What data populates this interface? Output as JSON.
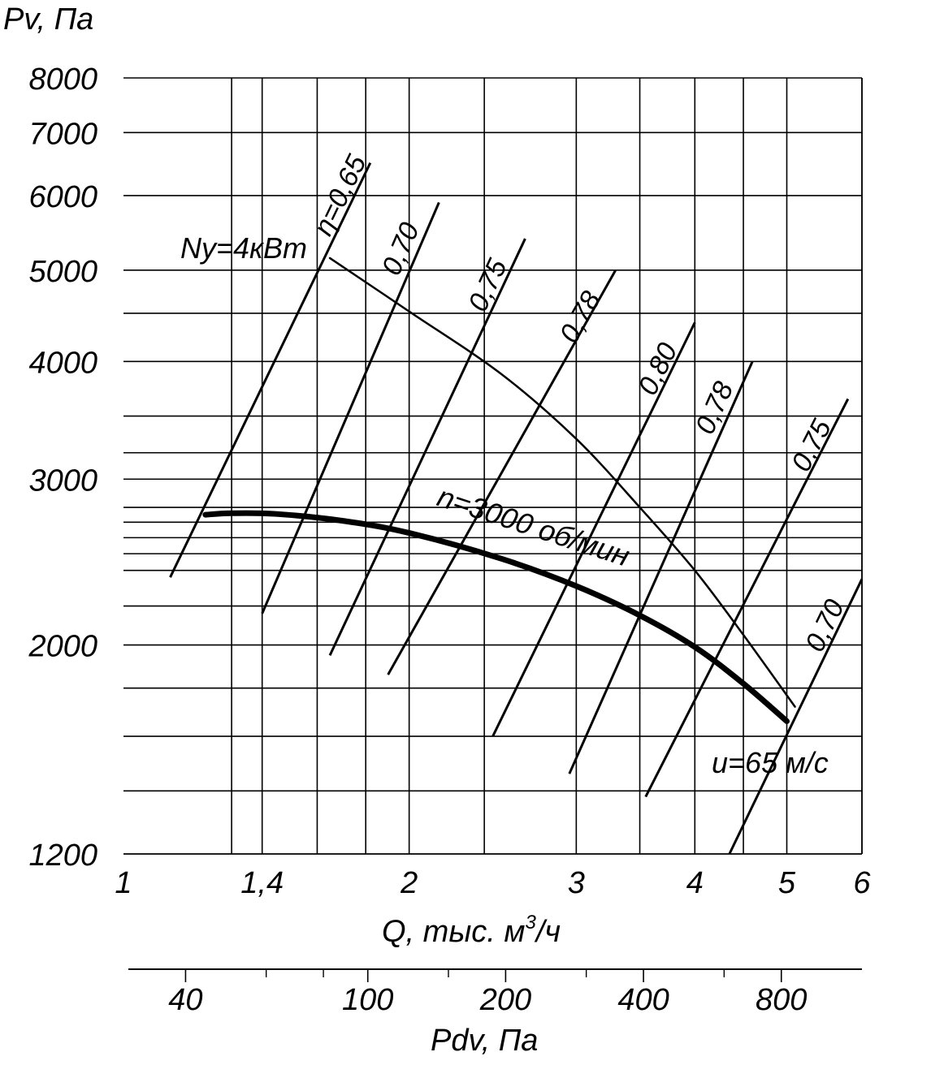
{
  "chart_data": {
    "type": "line",
    "title": "",
    "ylabel": "Pv, Па",
    "xlabel_prefix": "Q,  тыс. м",
    "xlabel_sup": "3",
    "xlabel_suffix": "/ч",
    "x2label": "Pdv, Па",
    "x_scale": "log",
    "y_scale": "log",
    "xlim": [
      1,
      6
    ],
    "ylim": [
      1200,
      8000
    ],
    "x_tick_labels": [
      {
        "value": 1,
        "label": "1"
      },
      {
        "value": 1.4,
        "label": "1,4"
      },
      {
        "value": 2,
        "label": "2"
      },
      {
        "value": 3,
        "label": "3"
      },
      {
        "value": 4,
        "label": "4"
      },
      {
        "value": 5,
        "label": "5"
      },
      {
        "value": 6,
        "label": "6"
      }
    ],
    "x_grid": [
      1.3,
      1.4,
      1.6,
      1.8,
      2,
      2.4,
      3,
      3.5,
      4,
      4.5,
      5,
      6
    ],
    "y_tick_labels": [
      {
        "value": 8000,
        "label": "8000"
      },
      {
        "value": 7000,
        "label": "7000"
      },
      {
        "value": 6000,
        "label": "6000"
      },
      {
        "value": 5000,
        "label": "5000"
      },
      {
        "value": 4000,
        "label": "4000"
      },
      {
        "value": 3000,
        "label": "3000"
      },
      {
        "value": 2000,
        "label": "2000"
      },
      {
        "value": 1200,
        "label": "1200"
      }
    ],
    "y_grid": [
      8000,
      7000,
      6000,
      5000,
      4500,
      4000,
      3500,
      3200,
      3000,
      2800,
      2700,
      2600,
      2500,
      2400,
      2200,
      2000,
      1800,
      1600,
      1400,
      1200
    ],
    "secondary_axis": {
      "label": "Pdv, Па",
      "scale": "log",
      "range": [
        30,
        1200
      ],
      "tick_labels": [
        {
          "value": 40,
          "label": "40"
        },
        {
          "value": 100,
          "label": "100"
        },
        {
          "value": 200,
          "label": "200"
        },
        {
          "value": 400,
          "label": "400"
        },
        {
          "value": 800,
          "label": "800"
        }
      ],
      "minor_ticks": [
        60,
        80,
        150,
        300,
        600
      ]
    },
    "series": [
      {
        "name": "n=3000 об/мин",
        "label": "n=3000 об/мин",
        "x": [
          1.22,
          1.3,
          1.45,
          1.7,
          2.0,
          2.5,
          3.0,
          3.5,
          4.0,
          4.5,
          5.0
        ],
        "values": [
          2750,
          2760,
          2755,
          2710,
          2630,
          2470,
          2310,
          2150,
          1990,
          1820,
          1660
        ],
        "stroke_width": 7
      },
      {
        "name": "Ny=4кВт",
        "label": "Ny=4кВт",
        "x": [
          1.65,
          2.0,
          2.5,
          3.0,
          3.5,
          4.0,
          4.5,
          5.1
        ],
        "values": [
          5150,
          4520,
          3880,
          3310,
          2800,
          2400,
          2050,
          1720
        ],
        "stroke_width": 2.5
      }
    ],
    "efficiency_lines": [
      {
        "label": "η=0,65",
        "from": {
          "x": 1.12,
          "y": 2360
        },
        "to": {
          "x": 1.82,
          "y": 6500
        }
      },
      {
        "label": "0,70",
        "from": {
          "x": 1.4,
          "y": 2160
        },
        "to": {
          "x": 2.15,
          "y": 5900
        }
      },
      {
        "label": "0,75",
        "from": {
          "x": 1.65,
          "y": 1950
        },
        "to": {
          "x": 2.65,
          "y": 5400
        }
      },
      {
        "label": "0,78",
        "from": {
          "x": 1.9,
          "y": 1860
        },
        "to": {
          "x": 3.3,
          "y": 5000
        }
      },
      {
        "label": "0,80",
        "from": {
          "x": 2.45,
          "y": 1600
        },
        "to": {
          "x": 4.0,
          "y": 4400
        }
      },
      {
        "label": "0,78",
        "from": {
          "x": 2.95,
          "y": 1460
        },
        "to": {
          "x": 4.6,
          "y": 4000
        }
      },
      {
        "label": "0,75",
        "from": {
          "x": 3.55,
          "y": 1380
        },
        "to": {
          "x": 5.8,
          "y": 3650
        }
      },
      {
        "label": "0,70",
        "from": {
          "x": 4.35,
          "y": 1200
        },
        "to": {
          "x": 6.0,
          "y": 2350
        }
      }
    ],
    "annotations": {
      "speed_label": "n=3000 об/мин",
      "power_label": "Ny=4кВт",
      "tip_speed_label": "u=65 м/с"
    }
  }
}
